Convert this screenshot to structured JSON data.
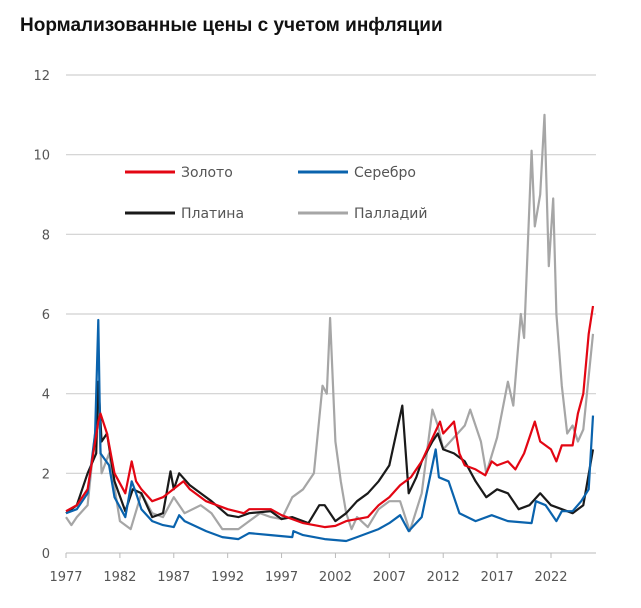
{
  "chart_data": {
    "type": "line",
    "title": "Нормализованные цены с учетом инфляции",
    "xlabel": "",
    "ylabel": "",
    "xlim": [
      1977,
      2026.2
    ],
    "ylim": [
      0,
      12
    ],
    "xticks": [
      "1977",
      "1982",
      "1987",
      "1992",
      "1997",
      "2002",
      "2007",
      "2012",
      "2017",
      "2022"
    ],
    "yticks": [
      "0",
      "2",
      "4",
      "6",
      "8",
      "10",
      "12"
    ],
    "grid": true,
    "legend": "top-left",
    "series": [
      {
        "name": "Золото",
        "color": "#e30613",
        "points": [
          [
            1977,
            1.05
          ],
          [
            1978,
            1.2
          ],
          [
            1979,
            1.6
          ],
          [
            1980,
            3.3
          ],
          [
            1980.2,
            3.5
          ],
          [
            1980.8,
            3.0
          ],
          [
            1981.5,
            2.0
          ],
          [
            1982.5,
            1.5
          ],
          [
            1983.1,
            2.3
          ],
          [
            1983.5,
            1.8
          ],
          [
            1984,
            1.6
          ],
          [
            1985,
            1.3
          ],
          [
            1986,
            1.4
          ],
          [
            1987.9,
            1.8
          ],
          [
            1988.5,
            1.6
          ],
          [
            1990,
            1.3
          ],
          [
            1992,
            1.1
          ],
          [
            1993.5,
            1.0
          ],
          [
            1994,
            1.1
          ],
          [
            1996,
            1.1
          ],
          [
            1997,
            0.95
          ],
          [
            1999,
            0.75
          ],
          [
            2001,
            0.65
          ],
          [
            2002,
            0.68
          ],
          [
            2003,
            0.8
          ],
          [
            2005,
            0.9
          ],
          [
            2006,
            1.2
          ],
          [
            2007,
            1.4
          ],
          [
            2008,
            1.7
          ],
          [
            2009,
            1.9
          ],
          [
            2010,
            2.3
          ],
          [
            2011.7,
            3.3
          ],
          [
            2012,
            3.0
          ],
          [
            2013,
            3.3
          ],
          [
            2013.5,
            2.5
          ],
          [
            2014,
            2.2
          ],
          [
            2015,
            2.1
          ],
          [
            2015.9,
            1.95
          ],
          [
            2016.5,
            2.3
          ],
          [
            2017,
            2.2
          ],
          [
            2018,
            2.3
          ],
          [
            2018.7,
            2.1
          ],
          [
            2019.5,
            2.5
          ],
          [
            2020.5,
            3.3
          ],
          [
            2021,
            2.8
          ],
          [
            2022,
            2.6
          ],
          [
            2022.5,
            2.3
          ],
          [
            2023,
            2.7
          ],
          [
            2024,
            2.7
          ],
          [
            2024.5,
            3.5
          ],
          [
            2025,
            4.0
          ],
          [
            2025.5,
            5.5
          ],
          [
            2025.9,
            6.2
          ]
        ]
      },
      {
        "name": "Серебро",
        "color": "#0a63ad",
        "points": [
          [
            1977,
            1.0
          ],
          [
            1978,
            1.1
          ],
          [
            1979,
            1.5
          ],
          [
            1979.7,
            3.0
          ],
          [
            1980,
            5.85
          ],
          [
            1980.2,
            2.5
          ],
          [
            1981,
            2.2
          ],
          [
            1981.5,
            1.4
          ],
          [
            1982.5,
            0.9
          ],
          [
            1983.1,
            1.8
          ],
          [
            1983.5,
            1.5
          ],
          [
            1984,
            1.1
          ],
          [
            1985,
            0.8
          ],
          [
            1986,
            0.7
          ],
          [
            1987,
            0.65
          ],
          [
            1987.5,
            0.95
          ],
          [
            1988,
            0.8
          ],
          [
            1990,
            0.55
          ],
          [
            1991.5,
            0.4
          ],
          [
            1993,
            0.35
          ],
          [
            1994,
            0.5
          ],
          [
            1996,
            0.45
          ],
          [
            1998,
            0.4
          ],
          [
            1998.1,
            0.55
          ],
          [
            1999,
            0.45
          ],
          [
            2001,
            0.35
          ],
          [
            2003,
            0.3
          ],
          [
            2004,
            0.4
          ],
          [
            2006,
            0.6
          ],
          [
            2007,
            0.75
          ],
          [
            2008,
            0.95
          ],
          [
            2008.8,
            0.55
          ],
          [
            2010,
            0.9
          ],
          [
            2011.3,
            2.6
          ],
          [
            2011.6,
            1.9
          ],
          [
            2012.5,
            1.8
          ],
          [
            2013.5,
            1.0
          ],
          [
            2015,
            0.8
          ],
          [
            2016.5,
            0.95
          ],
          [
            2018,
            0.8
          ],
          [
            2020.2,
            0.75
          ],
          [
            2020.6,
            1.3
          ],
          [
            2021.5,
            1.2
          ],
          [
            2022.5,
            0.8
          ],
          [
            2023,
            1.05
          ],
          [
            2024,
            1.05
          ],
          [
            2024.8,
            1.3
          ],
          [
            2025.5,
            1.6
          ],
          [
            2025.9,
            3.45
          ]
        ]
      },
      {
        "name": "Платина",
        "color": "#1a1a1a",
        "points": [
          [
            1977,
            1.0
          ],
          [
            1978,
            1.2
          ],
          [
            1979,
            2.0
          ],
          [
            1979.8,
            2.5
          ],
          [
            1980,
            4.3
          ],
          [
            1980.3,
            2.8
          ],
          [
            1980.8,
            3.0
          ],
          [
            1981.5,
            1.8
          ],
          [
            1982.5,
            1.05
          ],
          [
            1983.2,
            1.6
          ],
          [
            1984,
            1.5
          ],
          [
            1985,
            0.9
          ],
          [
            1986,
            1.0
          ],
          [
            1986.7,
            2.05
          ],
          [
            1987,
            1.6
          ],
          [
            1987.5,
            2.0
          ],
          [
            1988.5,
            1.7
          ],
          [
            1989.5,
            1.5
          ],
          [
            1990.5,
            1.3
          ],
          [
            1992,
            0.95
          ],
          [
            1993,
            0.9
          ],
          [
            1994,
            1.0
          ],
          [
            1996,
            1.05
          ],
          [
            1997,
            0.85
          ],
          [
            1998,
            0.9
          ],
          [
            1999.5,
            0.75
          ],
          [
            2000.5,
            1.2
          ],
          [
            2001,
            1.2
          ],
          [
            2002,
            0.8
          ],
          [
            2003,
            1.0
          ],
          [
            2004,
            1.3
          ],
          [
            2005,
            1.5
          ],
          [
            2006,
            1.8
          ],
          [
            2007,
            2.2
          ],
          [
            2008.2,
            3.7
          ],
          [
            2008.8,
            1.5
          ],
          [
            2009.5,
            1.9
          ],
          [
            2010,
            2.3
          ],
          [
            2011,
            2.8
          ],
          [
            2011.5,
            3.0
          ],
          [
            2012,
            2.6
          ],
          [
            2013,
            2.5
          ],
          [
            2014,
            2.3
          ],
          [
            2015,
            1.8
          ],
          [
            2016,
            1.4
          ],
          [
            2017,
            1.6
          ],
          [
            2018,
            1.5
          ],
          [
            2019,
            1.1
          ],
          [
            2020,
            1.2
          ],
          [
            2021,
            1.5
          ],
          [
            2022,
            1.2
          ],
          [
            2023,
            1.1
          ],
          [
            2024,
            1.0
          ],
          [
            2025,
            1.2
          ],
          [
            2025.9,
            2.6
          ]
        ]
      },
      {
        "name": "Палладий",
        "color": "#a6a6a6",
        "points": [
          [
            1977,
            0.9
          ],
          [
            1977.5,
            0.7
          ],
          [
            1978,
            0.9
          ],
          [
            1979,
            1.2
          ],
          [
            1980,
            3.8
          ],
          [
            1980.3,
            2.0
          ],
          [
            1981,
            2.5
          ],
          [
            1982,
            0.8
          ],
          [
            1983,
            0.6
          ],
          [
            1984,
            1.5
          ],
          [
            1985,
            1.0
          ],
          [
            1986,
            0.9
          ],
          [
            1987,
            1.4
          ],
          [
            1988,
            1.0
          ],
          [
            1989.5,
            1.2
          ],
          [
            1990.5,
            1.0
          ],
          [
            1991.5,
            0.6
          ],
          [
            1993,
            0.6
          ],
          [
            1994,
            0.8
          ],
          [
            1995,
            1.0
          ],
          [
            1996,
            0.9
          ],
          [
            1997,
            0.85
          ],
          [
            1998,
            1.4
          ],
          [
            1999,
            1.6
          ],
          [
            2000,
            2.0
          ],
          [
            2000.8,
            4.2
          ],
          [
            2001.2,
            4.0
          ],
          [
            2001.5,
            5.9
          ],
          [
            2002,
            2.8
          ],
          [
            2002.5,
            1.8
          ],
          [
            2003,
            1.0
          ],
          [
            2003.5,
            0.6
          ],
          [
            2004,
            0.9
          ],
          [
            2005,
            0.65
          ],
          [
            2006,
            1.1
          ],
          [
            2007,
            1.3
          ],
          [
            2008,
            1.3
          ],
          [
            2008.9,
            0.55
          ],
          [
            2010,
            1.5
          ],
          [
            2011,
            3.6
          ],
          [
            2011.5,
            3.2
          ],
          [
            2012,
            2.6
          ],
          [
            2013,
            2.9
          ],
          [
            2014,
            3.2
          ],
          [
            2014.5,
            3.6
          ],
          [
            2015.5,
            2.8
          ],
          [
            2016,
            2.0
          ],
          [
            2017,
            2.9
          ],
          [
            2018,
            4.3
          ],
          [
            2018.5,
            3.7
          ],
          [
            2019.2,
            6.0
          ],
          [
            2019.5,
            5.4
          ],
          [
            2020.2,
            10.1
          ],
          [
            2020.5,
            8.2
          ],
          [
            2021,
            9.0
          ],
          [
            2021.4,
            11.0
          ],
          [
            2021.8,
            7.2
          ],
          [
            2022.2,
            8.9
          ],
          [
            2022.5,
            6.0
          ],
          [
            2023,
            4.2
          ],
          [
            2023.5,
            3.0
          ],
          [
            2024,
            3.2
          ],
          [
            2024.5,
            2.8
          ],
          [
            2025,
            3.1
          ],
          [
            2025.9,
            5.5
          ]
        ]
      }
    ]
  }
}
